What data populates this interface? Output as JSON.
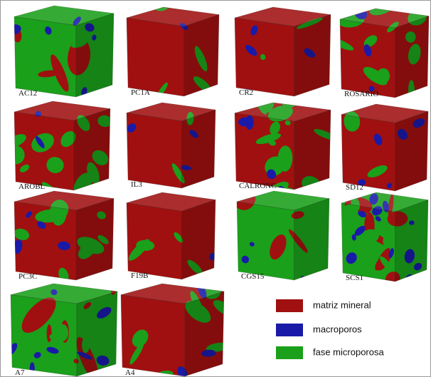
{
  "cubes": [
    {
      "label": "AC12"
    },
    {
      "label": "PC1A"
    },
    {
      "label": "CR2"
    },
    {
      "label": "ROSÁRIO"
    },
    {
      "label": "AROBL"
    },
    {
      "label": "IL3"
    },
    {
      "label": "CALRONC"
    },
    {
      "label": "SD12"
    },
    {
      "label": "PC3C"
    },
    {
      "label": "F19B"
    },
    {
      "label": "CGS15"
    },
    {
      "label": "SCS1"
    },
    {
      "label": "A7"
    },
    {
      "label": "A4"
    }
  ],
  "legend": {
    "items": [
      "matriz mineral",
      "macroporos",
      "fase microporosa"
    ]
  }
}
